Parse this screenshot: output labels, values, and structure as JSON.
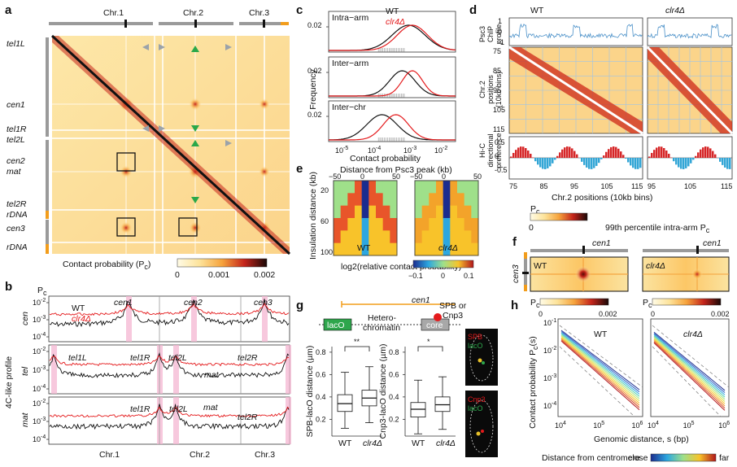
{
  "panels": {
    "a": {
      "letter": "a",
      "chromosomes": [
        "Chr.1",
        "Chr.2",
        "Chr.3"
      ],
      "row_labels": [
        "tel1L",
        "cen1",
        "tel1R",
        "tel2L",
        "cen2",
        "mat",
        "tel2R",
        "rDNA",
        "cen3",
        "rDNA"
      ],
      "colorbar": {
        "label": "Contact probability (P",
        "sub": "c",
        "close": ")",
        "ticks": [
          "0",
          "0.001",
          "0.002"
        ]
      }
    },
    "b": {
      "letter": "b",
      "y_unit": "P",
      "y_unit_sub": "c",
      "side_label": "4C-like profile",
      "wt": "WT",
      "mut": "clr4Δ",
      "yticks": [
        "10",
        "10",
        "10"
      ],
      "yexp": [
        "-2",
        "-3",
        "-4"
      ],
      "rows": [
        {
          "name": "cen",
          "peaks": [
            "cen1",
            "cen2",
            "cen3"
          ]
        },
        {
          "name": "tel",
          "peaks": [
            "tel1L",
            "tel1R",
            "tel2L",
            "tel2R",
            "mat"
          ]
        },
        {
          "name": "mat",
          "peaks": [
            "tel1R",
            "tel2L",
            "mat",
            "tel2R"
          ]
        }
      ],
      "xlabels": [
        "Chr.1",
        "Chr.2",
        "Chr.3"
      ]
    },
    "c": {
      "letter": "c",
      "ylabel": "Frequency",
      "xlabel": "Contact probability",
      "ytick": "0.02",
      "legend": {
        "wt": "WT",
        "mut": "clr4Δ"
      },
      "subplots": [
        "Intra−arm",
        "Inter−arm",
        "Inter−chr"
      ],
      "xticks": [
        "10",
        "10",
        "10"
      ],
      "xexp": [
        "-5",
        "-4",
        "-3"
      ],
      "xtick_last": "10",
      "xexp_last": "-2"
    },
    "d": {
      "letter": "d",
      "titles": [
        "WT",
        "clr4Δ"
      ],
      "top_label": [
        "Psc3",
        "ChIP",
        "profile"
      ],
      "mid_label": [
        "Chr.2",
        "positions",
        "(10kb bins)"
      ],
      "bottom_label": [
        "Hi-C",
        "directional",
        "preference"
      ],
      "xlabel": "Chr.2 positions (10kb bins)",
      "yticks_top": [
        "1",
        "0",
        "-1"
      ],
      "yticks_mid": [
        "75",
        "85",
        "95",
        "105",
        "115"
      ],
      "yticks_bot": [
        "0.5",
        "0",
        "-0.5"
      ],
      "xticks": [
        "75",
        "85",
        "95",
        "105",
        "115"
      ],
      "colorbar": {
        "label": "P",
        "sub": "c",
        "min": "0",
        "max": "99th percentile intra-arm P",
        "max_sub": "c"
      }
    },
    "e": {
      "letter": "e",
      "xlabel": "Distance from Psc3 peak (kb)",
      "xticks": [
        "−50",
        "0",
        "50",
        "−50",
        "0",
        "50"
      ],
      "ylabel": "Insulation distance (kb)",
      "yticks": [
        "20",
        "60",
        "100"
      ],
      "maps": [
        "WT",
        "clr4Δ"
      ],
      "colorbar": {
        "label": "log2(relative contact probability)",
        "ticks": [
          "−0.1",
          "0",
          "0.1"
        ]
      }
    },
    "f": {
      "letter": "f",
      "xlabel": "cen1",
      "ylabel": "cen3",
      "maps": [
        "WT",
        "clr4Δ"
      ],
      "colorbar": {
        "label": "P",
        "sub": "c",
        "ticks": [
          "0",
          "0.002"
        ]
      }
    },
    "g": {
      "letter": "g",
      "diagram": {
        "cen": "cen1",
        "lacO": "lacO",
        "hetero": "Hetero-",
        "chromatin": "chromatin",
        "core": "core",
        "spb": "SPB or",
        "cnp3": "Cnp3"
      },
      "plot1": {
        "ylabel": "SPB-lacO distance (µm)",
        "sig": "**",
        "yticks": [
          "0.2",
          "0.4",
          "0.6",
          "0.8"
        ]
      },
      "plot2": {
        "ylabel": "Cnp3-lacO distance (µm)",
        "sig": "*",
        "yticks": [
          "0.2",
          "0.4",
          "0.6",
          "0.8"
        ]
      },
      "groups": [
        "WT",
        "clr4Δ"
      ],
      "micro": [
        [
          "SPB",
          "lacO"
        ],
        [
          "Cnp3",
          "lacO"
        ]
      ],
      "box_data": [
        {
          "plot": "SPB-lacO",
          "group": "WT",
          "whisker_low": 0.12,
          "q1": 0.27,
          "median": 0.34,
          "q3": 0.42,
          "whisker_high": 0.62
        },
        {
          "plot": "SPB-lacO",
          "group": "clr4Δ",
          "whisker_low": 0.17,
          "q1": 0.32,
          "median": 0.39,
          "q3": 0.46,
          "whisker_high": 0.67
        },
        {
          "plot": "Cnp3-lacO",
          "group": "WT",
          "whisker_low": 0.07,
          "q1": 0.22,
          "median": 0.29,
          "q3": 0.35,
          "whisker_high": 0.55
        },
        {
          "plot": "Cnp3-lacO",
          "group": "clr4Δ",
          "whisker_low": 0.11,
          "q1": 0.27,
          "median": 0.33,
          "q3": 0.4,
          "whisker_high": 0.58
        }
      ]
    },
    "h": {
      "letter": "h",
      "ylabel": "Contact probability P",
      "ylabel_sub": "c",
      "ylabel_tail": "(s)",
      "xlabel": "Genomic distance, s (bp)",
      "titles": [
        "WT",
        "clr4Δ"
      ],
      "yticks": [
        "10",
        "10",
        "10",
        "10"
      ],
      "yexp": [
        "-1",
        "-2",
        "-3",
        "-4"
      ],
      "xticks": [
        "10",
        "10",
        "10"
      ],
      "xexp": [
        "4",
        "5",
        "6"
      ],
      "colorbar": {
        "label": "Distance from centromere",
        "close": "close",
        "far": "far"
      }
    }
  },
  "colors": {
    "wt": "#111111",
    "mut": "#e41a1c",
    "psc3": "#4a90c8",
    "pos": "#d62728",
    "neg": "#33a6d6",
    "highlight": "#f4b6d2"
  }
}
